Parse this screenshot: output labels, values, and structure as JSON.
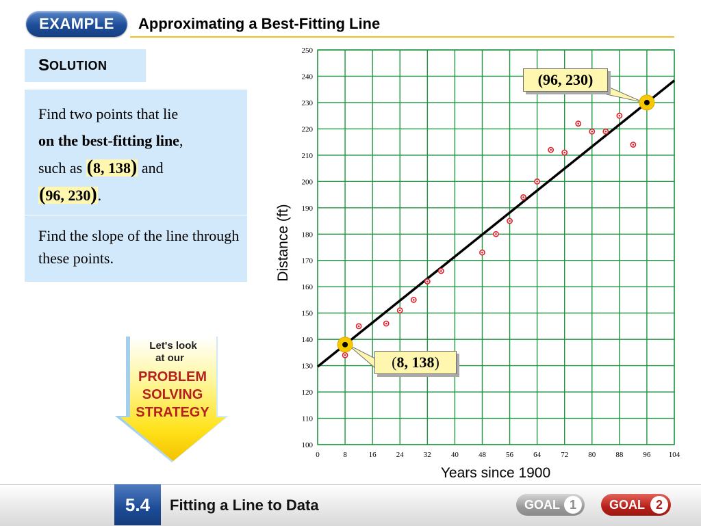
{
  "header": {
    "example_label": "EXAMPLE",
    "title": "Approximating a Best-Fitting Line"
  },
  "solution": {
    "label_first": "S",
    "label_rest": "OLUTION"
  },
  "steps": {
    "step1_intro": "Find two points that lie",
    "step1_bold": "on the best-fitting line",
    "step1_comma": ",",
    "step1_such_as": "such as",
    "step1_point1": "8, 138",
    "step1_and": "and",
    "step1_point2": "96, 230",
    "step1_period": ".",
    "step2": "Find the slope of the line through these points."
  },
  "strategy": {
    "line1": "Let's look",
    "line2": "at our",
    "line3": "PROBLEM",
    "line4": "SOLVING",
    "line5": "STRATEGY"
  },
  "callouts": {
    "top": "96, 230",
    "bottom": "8, 138"
  },
  "footer": {
    "section_number": "5.4",
    "section_title": "Fitting a Line to Data",
    "goal_label": "GOAL",
    "goal1_number": "1",
    "goal2_number": "2"
  },
  "colors": {
    "grid": "#1e9640",
    "point": "#e0202a",
    "line": "#000000",
    "highlight": "#f5c800",
    "panel": "#d2e9fb",
    "callout": "#fff7b0"
  },
  "chart_data": {
    "type": "scatter",
    "xlabel": "Years since 1900",
    "ylabel": "Distance (ft)",
    "xlim": [
      0,
      104
    ],
    "ylim": [
      100,
      250
    ],
    "xticks": [
      0,
      8,
      16,
      24,
      32,
      40,
      48,
      56,
      64,
      72,
      80,
      88,
      96,
      104
    ],
    "yticks": [
      100,
      110,
      120,
      130,
      140,
      150,
      160,
      170,
      180,
      190,
      200,
      210,
      220,
      230,
      240,
      250
    ],
    "grid": true,
    "points": [
      {
        "x": 8,
        "y": 134
      },
      {
        "x": 12,
        "y": 145
      },
      {
        "x": 20,
        "y": 146
      },
      {
        "x": 24,
        "y": 151
      },
      {
        "x": 28,
        "y": 155
      },
      {
        "x": 32,
        "y": 162
      },
      {
        "x": 36,
        "y": 166
      },
      {
        "x": 48,
        "y": 173
      },
      {
        "x": 52,
        "y": 180
      },
      {
        "x": 56,
        "y": 185
      },
      {
        "x": 60,
        "y": 194
      },
      {
        "x": 64,
        "y": 200
      },
      {
        "x": 68,
        "y": 212
      },
      {
        "x": 72,
        "y": 211
      },
      {
        "x": 76,
        "y": 222
      },
      {
        "x": 80,
        "y": 219
      },
      {
        "x": 84,
        "y": 219
      },
      {
        "x": 88,
        "y": 225
      },
      {
        "x": 92,
        "y": 214
      }
    ],
    "best_fit_line": {
      "x1": 8,
      "y1": 138,
      "x2": 96,
      "y2": 230
    },
    "highlighted_points": [
      {
        "x": 8,
        "y": 138
      },
      {
        "x": 96,
        "y": 230
      }
    ]
  }
}
